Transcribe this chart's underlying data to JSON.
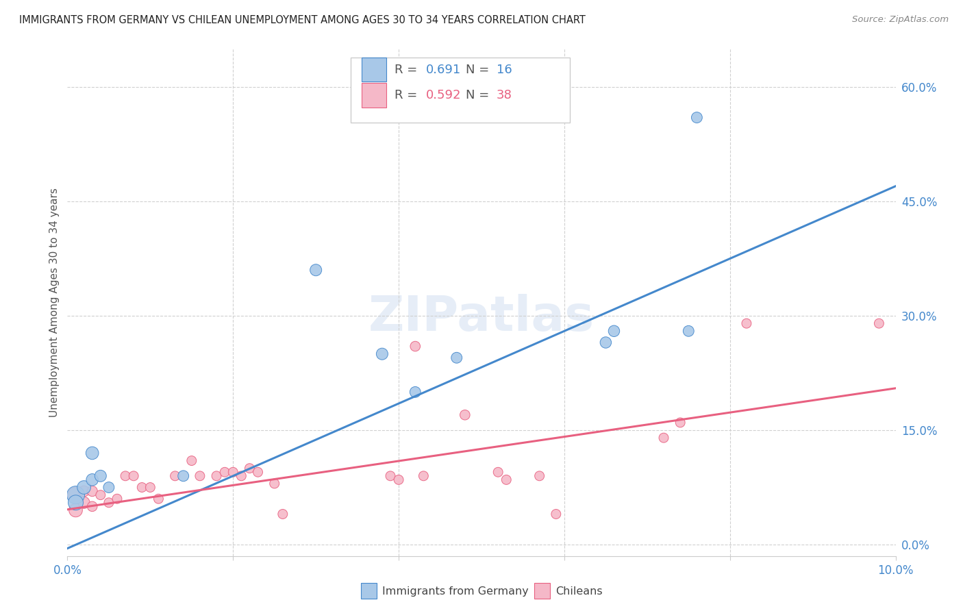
{
  "title": "IMMIGRANTS FROM GERMANY VS CHILEAN UNEMPLOYMENT AMONG AGES 30 TO 34 YEARS CORRELATION CHART",
  "source": "Source: ZipAtlas.com",
  "ylabel": "Unemployment Among Ages 30 to 34 years",
  "xlim": [
    0.0,
    0.1
  ],
  "ylim": [
    -0.015,
    0.65
  ],
  "xtick_positions": [
    0.0,
    0.02,
    0.04,
    0.06,
    0.08,
    0.1
  ],
  "xticklabels": [
    "0.0%",
    "",
    "",
    "",
    "",
    "10.0%"
  ],
  "yticks_right": [
    0.0,
    0.15,
    0.3,
    0.45,
    0.6
  ],
  "yticklabels_right": [
    "0.0%",
    "15.0%",
    "30.0%",
    "45.0%",
    "60.0%"
  ],
  "blue_color": "#a8c8e8",
  "pink_color": "#f5b8c8",
  "blue_line_color": "#4488cc",
  "pink_line_color": "#e86080",
  "blue_x": [
    0.001,
    0.001,
    0.002,
    0.003,
    0.003,
    0.004,
    0.005,
    0.014,
    0.03,
    0.038,
    0.042,
    0.047,
    0.065,
    0.066,
    0.075,
    0.076
  ],
  "blue_y": [
    0.065,
    0.055,
    0.075,
    0.12,
    0.085,
    0.09,
    0.075,
    0.09,
    0.36,
    0.25,
    0.2,
    0.245,
    0.265,
    0.28,
    0.28,
    0.56
  ],
  "blue_sizes": [
    350,
    250,
    200,
    180,
    160,
    150,
    130,
    130,
    150,
    150,
    130,
    130,
    140,
    140,
    130,
    130
  ],
  "pink_x": [
    0.001,
    0.001,
    0.002,
    0.002,
    0.003,
    0.003,
    0.004,
    0.005,
    0.006,
    0.007,
    0.008,
    0.009,
    0.01,
    0.011,
    0.013,
    0.015,
    0.016,
    0.018,
    0.019,
    0.02,
    0.021,
    0.022,
    0.023,
    0.025,
    0.026,
    0.039,
    0.04,
    0.042,
    0.043,
    0.048,
    0.052,
    0.053,
    0.057,
    0.059,
    0.072,
    0.074,
    0.082,
    0.098
  ],
  "pink_y": [
    0.065,
    0.045,
    0.055,
    0.07,
    0.07,
    0.05,
    0.065,
    0.055,
    0.06,
    0.09,
    0.09,
    0.075,
    0.075,
    0.06,
    0.09,
    0.11,
    0.09,
    0.09,
    0.095,
    0.095,
    0.09,
    0.1,
    0.095,
    0.08,
    0.04,
    0.09,
    0.085,
    0.26,
    0.09,
    0.17,
    0.095,
    0.085,
    0.09,
    0.04,
    0.14,
    0.16,
    0.29,
    0.29
  ],
  "pink_sizes": [
    280,
    200,
    150,
    130,
    120,
    110,
    100,
    100,
    100,
    100,
    100,
    100,
    100,
    100,
    100,
    100,
    100,
    100,
    100,
    100,
    100,
    100,
    100,
    100,
    100,
    100,
    100,
    110,
    100,
    110,
    100,
    100,
    100,
    100,
    100,
    100,
    100,
    100
  ],
  "blue_line_x": [
    0.0,
    0.1
  ],
  "blue_line_y": [
    -0.005,
    0.47
  ],
  "pink_line_x": [
    0.0,
    0.1
  ],
  "pink_line_y": [
    0.046,
    0.205
  ]
}
